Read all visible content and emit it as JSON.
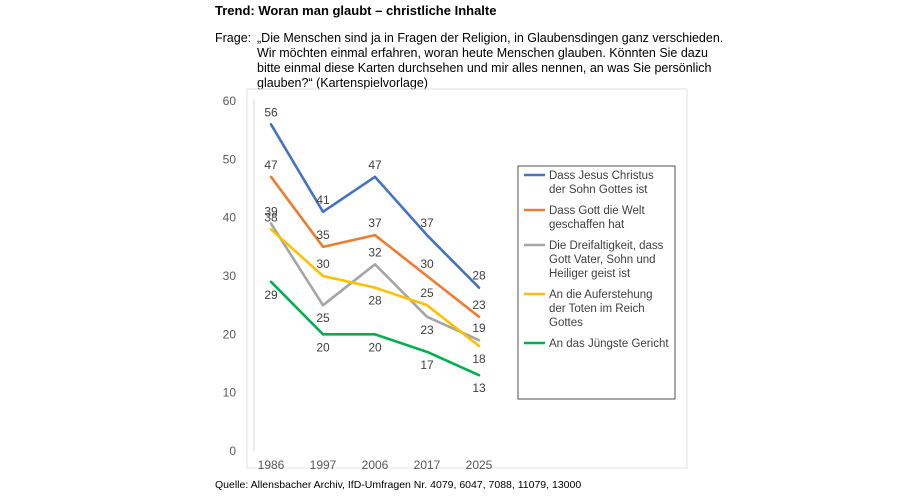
{
  "header": {
    "title": "Trend: Woran man glaubt – christliche Inhalte",
    "question_label": "Frage:",
    "question_text": "„Die Menschen sind ja in Fragen der Religion, in Glaubensdingen ganz verschieden. Wir möchten einmal erfahren, woran heute Menschen glauben. Könnten Sie dazu bitte einmal diese Karten durchsehen und mir alles nennen, an was Sie persönlich glauben?“ (Kartenspielvorlage)"
  },
  "footer": {
    "source": "Quelle: Allensbacher Archiv, IfD-Umfragen Nr. 4079, 6047, 7088, 11079, 13000"
  },
  "chart_data": {
    "type": "line",
    "title": "",
    "xlabel": "",
    "ylabel": "",
    "categories": [
      "1986",
      "1997",
      "2006",
      "2017",
      "2025"
    ],
    "ylim": [
      0,
      60
    ],
    "yticks": [
      0,
      10,
      20,
      30,
      40,
      50,
      60
    ],
    "grid": false,
    "legend_position": "right",
    "series": [
      {
        "name": "Dass Jesus Christus der Sohn Gottes ist",
        "legend_lines": [
          "Dass Jesus Christus",
          "der Sohn Gottes ist"
        ],
        "color": "#4472c4",
        "values": [
          56,
          41,
          47,
          37,
          28
        ],
        "labels": [
          "56",
          "41",
          "47",
          "37",
          "28"
        ],
        "label_offsets": [
          "above",
          "above",
          "above",
          "above",
          "above"
        ]
      },
      {
        "name": "Dass Gott die Welt geschaffen hat",
        "legend_lines": [
          "Dass Gott die Welt",
          "geschaffen hat"
        ],
        "color": "#ed7d31",
        "values": [
          47,
          35,
          37,
          30,
          23
        ],
        "labels": [
          "47",
          "35",
          "37",
          "30",
          "23"
        ],
        "label_offsets": [
          "above",
          "above",
          "above",
          "above",
          "above"
        ]
      },
      {
        "name": "Die Dreifaltigkeit, dass Gott Vater, Sohn und Heiliger geist ist",
        "legend_lines": [
          "Die Dreifaltigkeit, dass",
          "Gott Vater, Sohn und",
          "Heiliger geist ist"
        ],
        "color": "#a5a5a5",
        "values": [
          39,
          25,
          32,
          23,
          19
        ],
        "labels": [
          "39",
          "25",
          "32",
          "23",
          "19"
        ],
        "label_offsets": [
          "above",
          "below",
          "above",
          "below",
          "above"
        ]
      },
      {
        "name": "An die Auferstehung der Toten im Reich Gottes",
        "legend_lines": [
          "An die Auferstehung",
          "der Toten im Reich",
          "Gottes"
        ],
        "color": "#ffc000",
        "values": [
          38,
          30,
          28,
          25,
          18
        ],
        "labels": [
          "38",
          "30",
          "28",
          "25",
          "18"
        ],
        "label_offsets": [
          "above",
          "above",
          "below",
          "above",
          "below"
        ]
      },
      {
        "name": "An das Jüngste Gericht",
        "legend_lines": [
          "An das Jüngste Gericht"
        ],
        "color": "#00b050",
        "values": [
          29,
          20,
          20,
          17,
          13
        ],
        "labels": [
          "29",
          "20",
          "20",
          "17",
          "13"
        ],
        "label_offsets": [
          "below",
          "below",
          "below",
          "below",
          "below"
        ]
      }
    ]
  }
}
